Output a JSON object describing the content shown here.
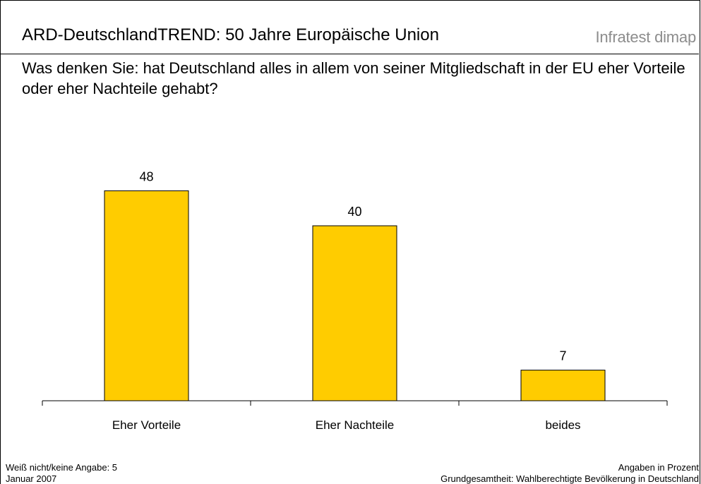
{
  "header": {
    "title": "ARD-DeutschlandTREND: 50 Jahre Europäische Union",
    "brand": "Infratest dimap"
  },
  "question": "Was denken Sie: hat Deutschland alles in allem von seiner Mitgliedschaft in der EU eher Vorteile oder eher Nachteile gehabt?",
  "chart_data": {
    "type": "bar",
    "categories": [
      "Eher Vorteile",
      "Eher Nachteile",
      "beides"
    ],
    "values": [
      48,
      40,
      7
    ],
    "data_labels": [
      "48",
      "40",
      "7"
    ],
    "bar_color": "#FFCC00",
    "xlabel": "",
    "ylabel": "",
    "grid": false,
    "legend": "none"
  },
  "footer": {
    "note": "Weiß nicht/keine Angabe: 5",
    "date": "Januar 2007",
    "unit": "Angaben in Prozent",
    "population": "Grundgesamtheit: Wahlberechtigte Bevölkerung in Deutschland"
  }
}
